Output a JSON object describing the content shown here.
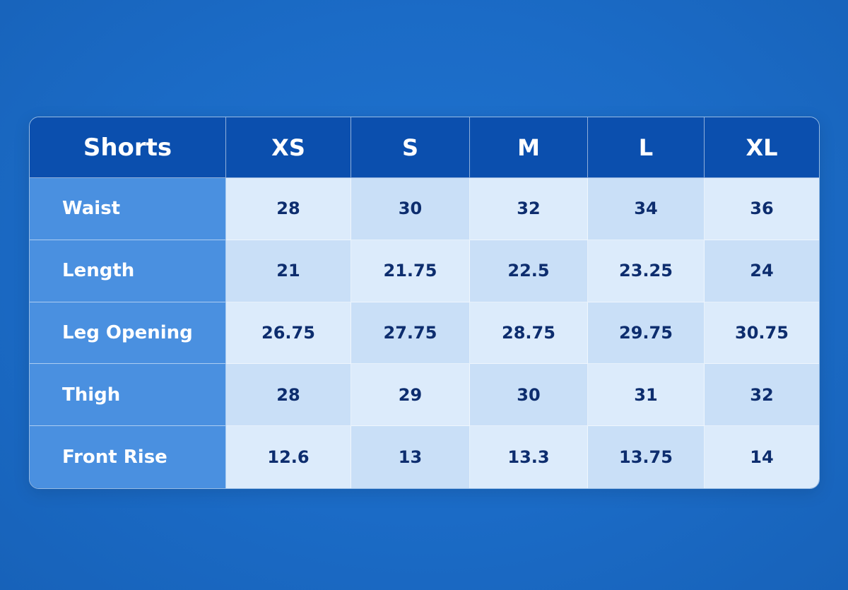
{
  "chart_data": {
    "type": "table",
    "title": "Shorts",
    "columns": [
      "XS",
      "S",
      "M",
      "L",
      "XL"
    ],
    "rows": [
      {
        "label": "Waist",
        "values": [
          "28",
          "30",
          "32",
          "34",
          "36"
        ]
      },
      {
        "label": "Length",
        "values": [
          "21",
          "21.75",
          "22.5",
          "23.25",
          "24"
        ]
      },
      {
        "label": "Leg Opening",
        "values": [
          "26.75",
          "27.75",
          "28.75",
          "29.75",
          "30.75"
        ]
      },
      {
        "label": "Thigh",
        "values": [
          "28",
          "29",
          "30",
          "31",
          "32"
        ]
      },
      {
        "label": "Front Rise",
        "values": [
          "12.6",
          "13",
          "13.3",
          "13.75",
          "14"
        ]
      }
    ]
  },
  "colors": {
    "background": "#1b6bc6",
    "header": "#0b4fae",
    "row_label": "#4a90e0",
    "cell_light": "#dcebfb",
    "cell_dark": "#c9dff7",
    "value_text": "#0d2d6e"
  }
}
